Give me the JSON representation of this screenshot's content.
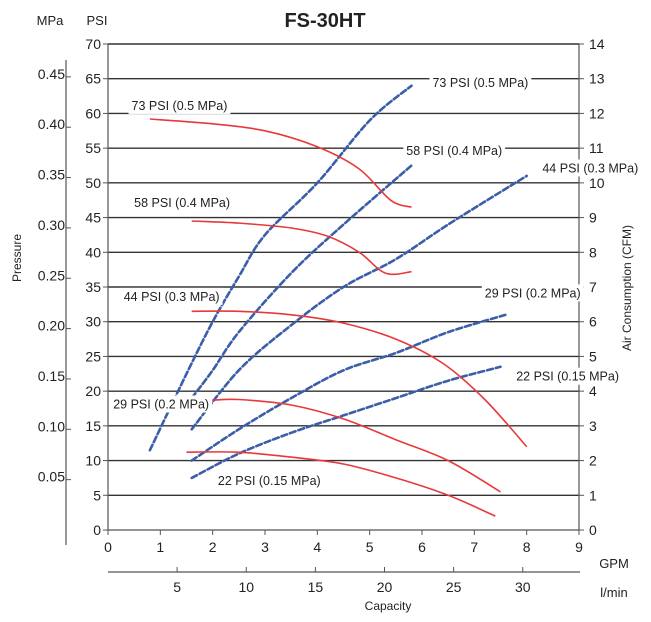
{
  "chart_data": {
    "type": "line",
    "title": "FS-30HT",
    "axes": {
      "left_psi": {
        "unit": "PSI",
        "min": 0,
        "max": 70,
        "ticks": [
          "0",
          "5",
          "10",
          "15",
          "20",
          "25",
          "30",
          "35",
          "40",
          "45",
          "50",
          "55",
          "60",
          "65",
          "70"
        ]
      },
      "left_mpa": {
        "unit": "MPa",
        "label": "Pressure",
        "ticks": [
          "0.05",
          "0.10",
          "0.15",
          "0.20",
          "0.25",
          "0.30",
          "0.35",
          "0.40",
          "0.45"
        ]
      },
      "right_cfm": {
        "label": "Air Consumption (CFM)",
        "min": 0,
        "max": 14,
        "ticks": [
          "0",
          "1",
          "2",
          "3",
          "4",
          "5",
          "6",
          "7",
          "8",
          "9",
          "10",
          "11",
          "12",
          "13",
          "14"
        ]
      },
      "bottom_gpm": {
        "unit": "GPM",
        "min": 0,
        "max": 9,
        "ticks": [
          "0",
          "1",
          "2",
          "3",
          "4",
          "5",
          "6",
          "7",
          "8",
          "9"
        ]
      },
      "bottom_lmin": {
        "unit": "l/min",
        "label": "Capacity",
        "ticks": [
          "5",
          "10",
          "15",
          "20",
          "25",
          "30"
        ]
      }
    },
    "grid": "horizontal",
    "performance_curves": [
      {
        "name": "73 PSI (0.5 MPa)",
        "points": [
          [
            0.8,
            59.2
          ],
          [
            2,
            58.5
          ],
          [
            3,
            57.5
          ],
          [
            4,
            55.2
          ],
          [
            4.8,
            52
          ],
          [
            5.4,
            47.5
          ],
          [
            5.8,
            46.5
          ]
        ]
      },
      {
        "name": "58 PSI (0.4 MPa)",
        "points": [
          [
            1.6,
            44.5
          ],
          [
            2.5,
            44.2
          ],
          [
            3.5,
            43.5
          ],
          [
            4.2,
            42.3
          ],
          [
            4.8,
            40
          ],
          [
            5.3,
            37
          ],
          [
            5.8,
            37.2
          ]
        ]
      },
      {
        "name": "44 PSI (0.3 MPa)",
        "points": [
          [
            1.6,
            31.5
          ],
          [
            2.5,
            31.5
          ],
          [
            3.5,
            31
          ],
          [
            4.5,
            29.8
          ],
          [
            5.5,
            27.5
          ],
          [
            6.4,
            24
          ],
          [
            7.2,
            18.8
          ],
          [
            8,
            12
          ]
        ]
      },
      {
        "name": "29 PSI (0.2 MPa)",
        "points": [
          [
            1.6,
            18.5
          ],
          [
            2,
            18.7
          ],
          [
            2.5,
            18.8
          ],
          [
            3.5,
            18
          ],
          [
            4.5,
            16
          ],
          [
            5.5,
            13
          ],
          [
            6.5,
            10
          ],
          [
            7.5,
            5.5
          ]
        ]
      },
      {
        "name": "22 PSI (0.15 MPa)",
        "points": [
          [
            1.5,
            11.2
          ],
          [
            2.5,
            11.2
          ],
          [
            3.5,
            10.5
          ],
          [
            4.5,
            9.5
          ],
          [
            5.5,
            7.5
          ],
          [
            6.5,
            5
          ],
          [
            7.4,
            2
          ]
        ]
      }
    ],
    "air_consumption_curves": [
      {
        "name": "73 PSI (0.5 MPa)",
        "points": [
          [
            0.8,
            2.3
          ],
          [
            1.5,
            4.5
          ],
          [
            2,
            6
          ],
          [
            2.5,
            7.3
          ],
          [
            3,
            8.5
          ],
          [
            4,
            10
          ],
          [
            5,
            11.8
          ],
          [
            5.8,
            12.8
          ]
        ]
      },
      {
        "name": "58 PSI (0.4 MPa)",
        "points": [
          [
            1.6,
            3.8
          ],
          [
            2,
            4.6
          ],
          [
            2.5,
            5.7
          ],
          [
            3.5,
            7.4
          ],
          [
            4.5,
            8.8
          ],
          [
            5.8,
            10.5
          ]
        ]
      },
      {
        "name": "44 PSI (0.3 MPa)",
        "points": [
          [
            1.6,
            2.9
          ],
          [
            2.5,
            4.6
          ],
          [
            3.5,
            5.9
          ],
          [
            4.5,
            7
          ],
          [
            5.5,
            7.8
          ],
          [
            6.5,
            8.8
          ],
          [
            8,
            10.2
          ]
        ]
      },
      {
        "name": "29 PSI (0.2 MPa)",
        "points": [
          [
            1.6,
            2
          ],
          [
            2.5,
            2.9
          ],
          [
            3.5,
            3.8
          ],
          [
            4.5,
            4.6
          ],
          [
            5.5,
            5.1
          ],
          [
            6.5,
            5.7
          ],
          [
            7.6,
            6.2
          ]
        ]
      },
      {
        "name": "22 PSI (0.15 MPa)",
        "points": [
          [
            1.6,
            1.5
          ],
          [
            2.5,
            2.2
          ],
          [
            3.5,
            2.8
          ],
          [
            4.5,
            3.3
          ],
          [
            5.5,
            3.8
          ],
          [
            6.5,
            4.3
          ],
          [
            7.5,
            4.7
          ]
        ]
      }
    ],
    "annotations": [
      {
        "text": "73 PSI (0.5 MPa)",
        "x_gpm": 0.45,
        "y_psi": 60.5,
        "anchor": "start"
      },
      {
        "text": "58 PSI (0.4 MPa)",
        "x_gpm": 0.5,
        "y_psi": 46.5,
        "anchor": "start"
      },
      {
        "text": "44 PSI (0.3 MPa)",
        "x_gpm": 0.3,
        "y_psi": 33,
        "anchor": "start"
      },
      {
        "text": "29 PSI (0.2 MPa)",
        "x_gpm": 0.1,
        "y_psi": 17.5,
        "anchor": "start"
      },
      {
        "text": "22 PSI (0.15 MPa)",
        "x_gpm": 2.1,
        "y_psi": 6.5,
        "anchor": "start"
      },
      {
        "text": "73 PSI (0.5 MPa)",
        "x_gpm": 6.2,
        "y_psi": 63.8,
        "anchor": "start"
      },
      {
        "text": "58 PSI (0.4 MPa)",
        "x_gpm": 5.7,
        "y_psi": 54.0,
        "anchor": "start"
      },
      {
        "text": "44 PSI (0.3 MPa)",
        "x_gpm": 8.3,
        "y_psi": 51.5,
        "anchor": "start"
      },
      {
        "text": "29 PSI (0.2 MPa)",
        "x_gpm": 7.2,
        "y_psi": 33.5,
        "anchor": "start"
      },
      {
        "text": "22 PSI (0.15 MPa)",
        "x_gpm": 7.8,
        "y_psi": 21.5,
        "anchor": "start"
      }
    ],
    "colors": {
      "performance": "#e8393a",
      "air": "#3a5ea8",
      "grid": "#333333",
      "axis": "#555555",
      "text": "#222222"
    }
  }
}
